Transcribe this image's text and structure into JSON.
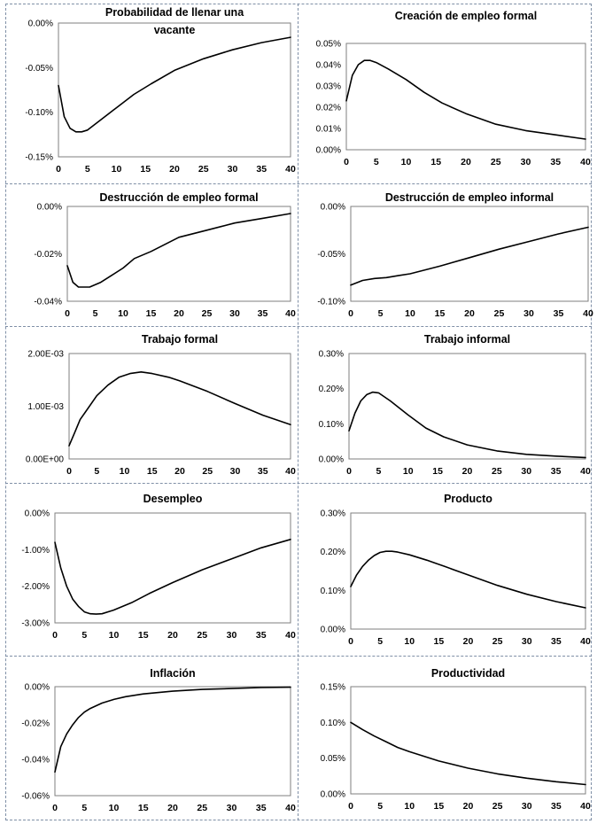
{
  "chart_data": [
    {
      "type": "line",
      "title": "Probabilidad de llenar una vacante",
      "title_lines": [
        "Probabilidad de llenar una",
        "vacante"
      ],
      "yticks": [
        "0.00%",
        "-0.05%",
        "-0.10%",
        "-0.15%"
      ],
      "ylim": [
        -0.15,
        0.0
      ],
      "ytick_values": [
        0.0,
        -0.05,
        -0.1,
        -0.15
      ],
      "xticks": [
        "0",
        "5",
        "10",
        "15",
        "20",
        "25",
        "30",
        "35",
        "40"
      ],
      "xlim": [
        0,
        40
      ],
      "x": [
        0,
        1,
        2,
        3,
        4,
        5,
        7,
        10,
        13,
        16,
        20,
        25,
        30,
        35,
        40
      ],
      "values": [
        -0.07,
        -0.105,
        -0.118,
        -0.122,
        -0.122,
        -0.12,
        -0.11,
        -0.095,
        -0.08,
        -0.068,
        -0.053,
        -0.04,
        -0.03,
        -0.022,
        -0.016
      ]
    },
    {
      "type": "line",
      "title": "Creación de empleo formal",
      "title_lines": [
        "Creación de empleo formal"
      ],
      "yticks": [
        "0.05%",
        "0.04%",
        "0.03%",
        "0.02%",
        "0.01%",
        "0.00%"
      ],
      "ylim": [
        0.0,
        0.05
      ],
      "ytick_values": [
        0.05,
        0.04,
        0.03,
        0.02,
        0.01,
        0.0
      ],
      "xticks": [
        "0",
        "5",
        "10",
        "15",
        "20",
        "25",
        "30",
        "35",
        "40"
      ],
      "xlim": [
        0,
        40
      ],
      "x": [
        0,
        1,
        2,
        3,
        4,
        5,
        7,
        10,
        13,
        16,
        20,
        25,
        30,
        35,
        40
      ],
      "values": [
        0.023,
        0.035,
        0.04,
        0.042,
        0.042,
        0.041,
        0.038,
        0.033,
        0.027,
        0.022,
        0.017,
        0.012,
        0.009,
        0.007,
        0.005
      ]
    },
    {
      "type": "line",
      "title": "Destrucción de empleo formal",
      "title_lines": [
        "Destrucción de empleo formal"
      ],
      "yticks": [
        "0.00%",
        "-0.02%",
        "-0.04%"
      ],
      "ylim": [
        -0.04,
        0.0
      ],
      "ytick_values": [
        0.0,
        -0.02,
        -0.04
      ],
      "xticks": [
        "0",
        "5",
        "10",
        "15",
        "20",
        "25",
        "30",
        "35",
        "40"
      ],
      "xlim": [
        0,
        40
      ],
      "x": [
        0,
        1,
        2,
        3,
        4,
        6,
        8,
        10,
        12,
        15,
        20,
        25,
        30,
        35,
        40
      ],
      "values": [
        -0.025,
        -0.032,
        -0.034,
        -0.034,
        -0.034,
        -0.032,
        -0.029,
        -0.026,
        -0.022,
        -0.019,
        -0.013,
        -0.01,
        -0.007,
        -0.005,
        -0.003
      ]
    },
    {
      "type": "line",
      "title": "Destrucción de empleo informal",
      "title_lines": [
        "Destrucción de empleo informal"
      ],
      "yticks": [
        "0.00%",
        "-0.05%",
        "-0.10%"
      ],
      "ylim": [
        -0.1,
        0.0
      ],
      "ytick_values": [
        0.0,
        -0.05,
        -0.1
      ],
      "xticks": [
        "0",
        "5",
        "10",
        "15",
        "20",
        "25",
        "30",
        "35",
        "40"
      ],
      "xlim": [
        0,
        40
      ],
      "x": [
        0,
        2,
        4,
        6,
        8,
        10,
        15,
        20,
        25,
        30,
        35,
        40
      ],
      "values": [
        -0.083,
        -0.078,
        -0.076,
        -0.075,
        -0.073,
        -0.071,
        -0.063,
        -0.054,
        -0.045,
        -0.037,
        -0.029,
        -0.022
      ]
    },
    {
      "type": "line",
      "title": "Trabajo formal",
      "title_lines": [
        "Trabajo formal"
      ],
      "yticks": [
        "2.00E-03",
        "1.00E-03",
        "0.00E+00"
      ],
      "ylim": [
        0.0,
        0.002
      ],
      "ytick_values": [
        0.002,
        0.001,
        0.0
      ],
      "xticks": [
        "0",
        "5",
        "10",
        "15",
        "20",
        "25",
        "30",
        "35",
        "40"
      ],
      "xlim": [
        0,
        40
      ],
      "x": [
        0,
        1,
        2,
        3,
        5,
        7,
        9,
        11,
        13,
        15,
        18,
        20,
        25,
        30,
        35,
        40
      ],
      "values": [
        0.00025,
        0.0005,
        0.00075,
        0.0009,
        0.0012,
        0.0014,
        0.00155,
        0.00162,
        0.00165,
        0.00162,
        0.00155,
        0.00148,
        0.00128,
        0.00105,
        0.00083,
        0.00065
      ]
    },
    {
      "type": "line",
      "title": "Trabajo  informal",
      "title_lines": [
        "Trabajo  informal"
      ],
      "yticks": [
        "0.30%",
        "0.20%",
        "0.10%",
        "0.00%"
      ],
      "ylim": [
        0.0,
        0.3
      ],
      "ytick_values": [
        0.3,
        0.2,
        0.1,
        0.0
      ],
      "xticks": [
        "0",
        "5",
        "10",
        "15",
        "20",
        "25",
        "30",
        "35",
        "40"
      ],
      "xlim": [
        0,
        40
      ],
      "x": [
        0,
        1,
        2,
        3,
        4,
        5,
        7,
        10,
        13,
        16,
        20,
        25,
        30,
        35,
        40
      ],
      "values": [
        0.08,
        0.13,
        0.165,
        0.183,
        0.19,
        0.188,
        0.165,
        0.125,
        0.088,
        0.063,
        0.04,
        0.023,
        0.013,
        0.008,
        0.004
      ]
    },
    {
      "type": "line",
      "title": "Desempleo",
      "title_lines": [
        "Desempleo"
      ],
      "yticks": [
        "0.00%",
        "-1.00%",
        "-2.00%",
        "-3.00%"
      ],
      "ylim": [
        -3.0,
        0.0
      ],
      "ytick_values": [
        0.0,
        -1.0,
        -2.0,
        -3.0
      ],
      "xticks": [
        "0",
        "5",
        "10",
        "15",
        "20",
        "25",
        "30",
        "35",
        "40"
      ],
      "xlim": [
        0,
        40
      ],
      "x": [
        0,
        1,
        2,
        3,
        4,
        5,
        6,
        7,
        8,
        10,
        13,
        16,
        20,
        25,
        30,
        35,
        40
      ],
      "values": [
        -0.8,
        -1.5,
        -2.0,
        -2.35,
        -2.55,
        -2.7,
        -2.75,
        -2.76,
        -2.75,
        -2.65,
        -2.45,
        -2.2,
        -1.9,
        -1.55,
        -1.25,
        -0.95,
        -0.72
      ]
    },
    {
      "type": "line",
      "title": "Producto",
      "title_lines": [
        "Producto"
      ],
      "yticks": [
        "0.30%",
        "0.20%",
        "0.10%",
        "0.00%"
      ],
      "ylim": [
        0.0,
        0.3
      ],
      "ytick_values": [
        0.3,
        0.2,
        0.1,
        0.0
      ],
      "xticks": [
        "0",
        "5",
        "10",
        "15",
        "20",
        "25",
        "30",
        "35",
        "40"
      ],
      "xlim": [
        0,
        40
      ],
      "x": [
        0,
        1,
        2,
        3,
        4,
        5,
        6,
        7,
        8,
        10,
        13,
        16,
        20,
        25,
        30,
        35,
        40
      ],
      "values": [
        0.11,
        0.14,
        0.162,
        0.178,
        0.19,
        0.198,
        0.201,
        0.201,
        0.199,
        0.192,
        0.178,
        0.162,
        0.14,
        0.113,
        0.09,
        0.071,
        0.055
      ]
    },
    {
      "type": "line",
      "title": "Inflación",
      "title_lines": [
        "Inflación"
      ],
      "yticks": [
        "0.00%",
        "-0.02%",
        "-0.04%",
        "-0.06%"
      ],
      "ylim": [
        -0.06,
        0.0
      ],
      "ytick_values": [
        0.0,
        -0.02,
        -0.04,
        -0.06
      ],
      "xticks": [
        "0",
        "5",
        "10",
        "15",
        "20",
        "25",
        "30",
        "35",
        "40"
      ],
      "xlim": [
        0,
        40
      ],
      "x": [
        0,
        1,
        2,
        3,
        4,
        5,
        6,
        8,
        10,
        12,
        15,
        20,
        25,
        30,
        35,
        40
      ],
      "values": [
        -0.047,
        -0.033,
        -0.026,
        -0.021,
        -0.017,
        -0.014,
        -0.012,
        -0.009,
        -0.007,
        -0.0055,
        -0.004,
        -0.0025,
        -0.0015,
        -0.001,
        -0.0005,
        -0.0003
      ]
    },
    {
      "type": "line",
      "title": "Productividad",
      "title_lines": [
        "Productividad"
      ],
      "yticks": [
        "0.15%",
        "0.10%",
        "0.05%",
        "0.00%"
      ],
      "ylim": [
        0.0,
        0.15
      ],
      "ytick_values": [
        0.15,
        0.1,
        0.05,
        0.0
      ],
      "xticks": [
        "0",
        "5",
        "10",
        "15",
        "20",
        "25",
        "30",
        "35",
        "40"
      ],
      "xlim": [
        0,
        40
      ],
      "x": [
        0,
        2,
        4,
        6,
        8,
        10,
        15,
        20,
        25,
        30,
        35,
        40
      ],
      "values": [
        0.1,
        0.09,
        0.081,
        0.073,
        0.065,
        0.059,
        0.046,
        0.036,
        0.028,
        0.022,
        0.017,
        0.013
      ]
    }
  ]
}
